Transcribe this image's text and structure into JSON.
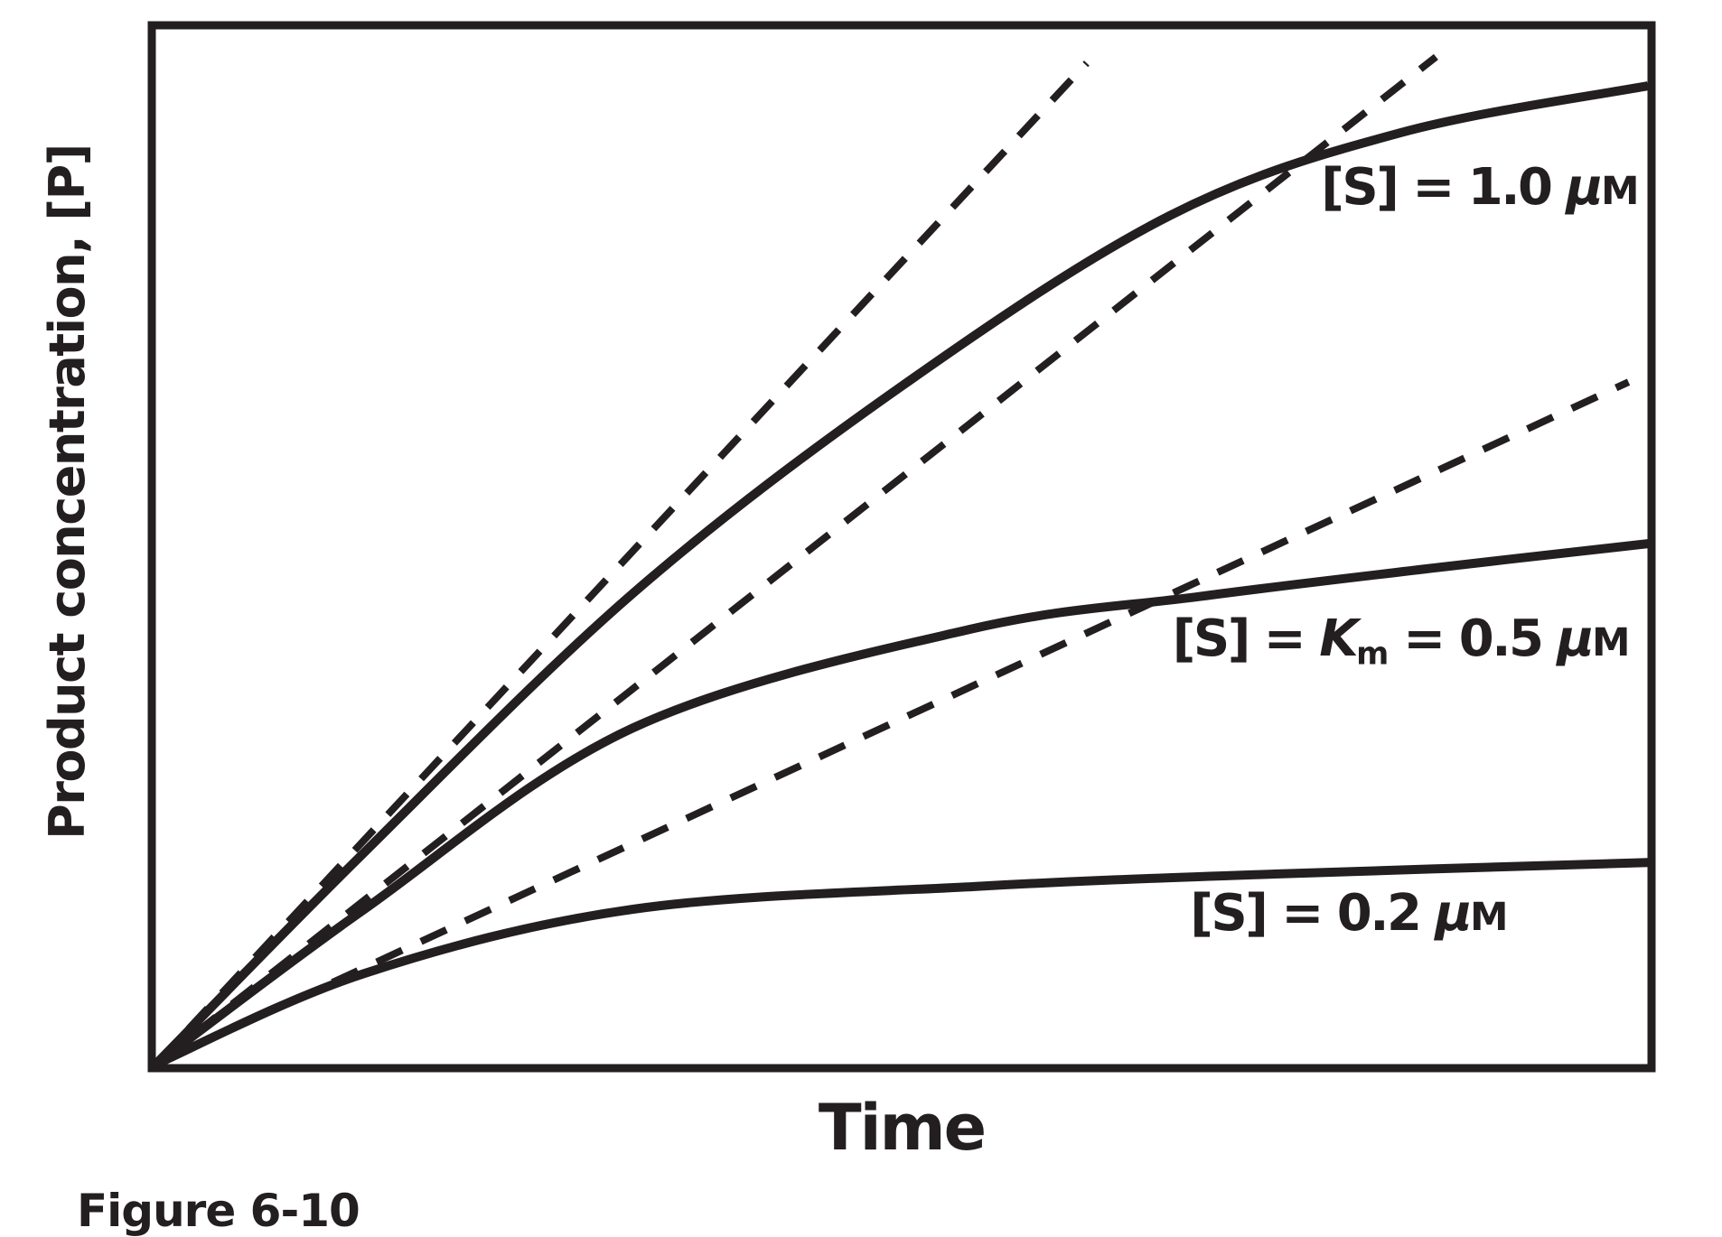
{
  "figure": {
    "caption": "Figure 6-10",
    "x_axis_label": "Time",
    "y_axis_label": "Product concentration, [P]"
  },
  "colors": {
    "ink": "#231f20",
    "background": "#ffffff"
  },
  "curve_labels": {
    "s10": {
      "p1": "[S] = 1.0 ",
      "mu": "μ",
      "unit": "M"
    },
    "s05": {
      "p1": "[S] = ",
      "k": "K",
      "k_sub": "m",
      "p2": " = 0.5 ",
      "mu": "μ",
      "unit": "M"
    },
    "s02": {
      "p1": "[S] = 0.2 ",
      "mu": "μ",
      "unit": "M"
    }
  },
  "chart_data": {
    "type": "line",
    "xlabel": "Time",
    "ylabel": "Product concentration, [P]",
    "axes": "no ticks or numeric scales; qualitative arbitrary units, both axes start at 0 at the origin",
    "grid": false,
    "legend": "none (each curve labeled directly on the plot)",
    "annotations": [
      "[S] = 1.0 μM",
      "[S] = Km = 0.5 μM",
      "[S] = 0.2 μM"
    ],
    "series": [
      {
        "id": "progress-curve-s-1-0",
        "name": "[S] = 1.0 μM progress curve",
        "style": "solid",
        "points": [
          [
            0,
            0
          ],
          [
            0.14,
            0.205
          ],
          [
            0.32,
            0.455
          ],
          [
            0.5,
            0.655
          ],
          [
            0.68,
            0.82
          ],
          [
            0.835,
            0.9
          ],
          [
            1,
            0.945
          ]
        ]
      },
      {
        "id": "progress-curve-s-0-5",
        "name": "[S] = Km = 0.5 μM progress curve",
        "style": "solid",
        "points": [
          [
            0,
            0
          ],
          [
            0.14,
            0.15
          ],
          [
            0.32,
            0.325
          ],
          [
            0.545,
            0.42
          ],
          [
            0.7,
            0.452
          ],
          [
            0.86,
            0.48
          ],
          [
            1,
            0.503
          ]
        ]
      },
      {
        "id": "progress-curve-s-0-2",
        "name": "[S] = 0.2 μM progress curve",
        "style": "solid",
        "points": [
          [
            0,
            0
          ],
          [
            0.14,
            0.088
          ],
          [
            0.32,
            0.15
          ],
          [
            0.55,
            0.172
          ],
          [
            0.75,
            0.184
          ],
          [
            1,
            0.195
          ]
        ]
      },
      {
        "id": "initial-velocity-tangent-s-1-0",
        "name": "initial-velocity tangent for [S] = 1.0 μM",
        "style": "dashed",
        "points": [
          [
            0,
            0
          ],
          [
            0.624,
            0.967
          ]
        ]
      },
      {
        "id": "initial-velocity-tangent-s-0-5",
        "name": "initial-velocity tangent for [S] = 0.5 μM",
        "style": "dashed",
        "points": [
          [
            0,
            0
          ],
          [
            0.858,
            0.973
          ]
        ]
      },
      {
        "id": "initial-velocity-tangent-s-0-2",
        "name": "initial-velocity tangent for [S] = 0.2 μM",
        "style": "dashed",
        "points": [
          [
            0,
            0
          ],
          [
            0.987,
            0.659
          ]
        ]
      }
    ]
  }
}
